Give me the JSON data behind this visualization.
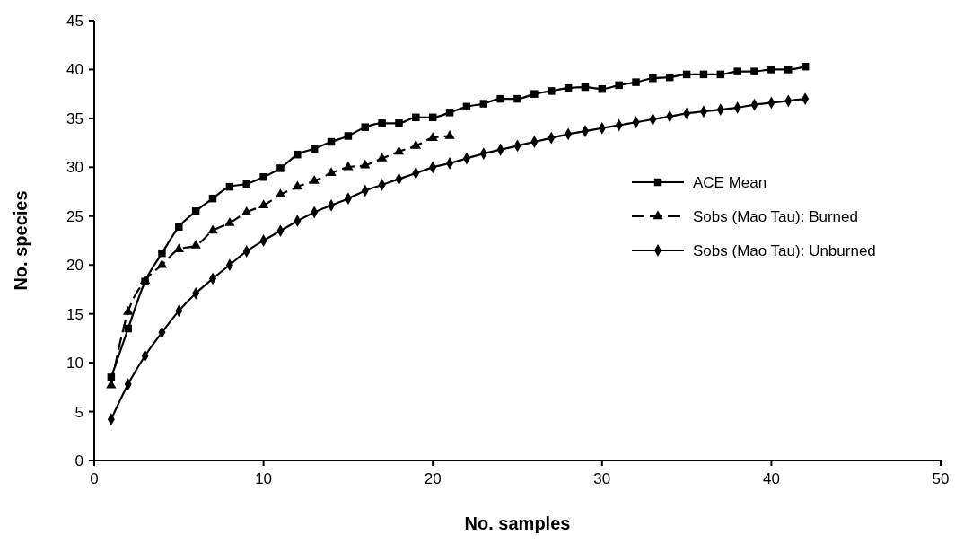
{
  "chart_data": {
    "type": "line",
    "xlabel": "No. samples",
    "ylabel": "No. species",
    "xlim": [
      0,
      50
    ],
    "xticks": [
      0,
      10,
      20,
      30,
      40,
      50
    ],
    "ylim": [
      0,
      45
    ],
    "yticks": [
      0,
      5,
      10,
      15,
      20,
      25,
      30,
      35,
      40,
      45
    ],
    "grid": false,
    "legend": "right",
    "series": [
      {
        "name": "ACE Mean",
        "color": "#000000",
        "marker": "square",
        "line_style": "solid",
        "x": [
          1,
          2,
          3,
          4,
          5,
          6,
          7,
          8,
          9,
          10,
          11,
          12,
          13,
          14,
          15,
          16,
          17,
          18,
          19,
          20,
          21,
          22,
          23,
          24,
          25,
          26,
          27,
          28,
          29,
          30,
          31,
          32,
          33,
          34,
          35,
          36,
          37,
          38,
          39,
          40,
          41,
          42
        ],
        "values": [
          8.5,
          13.5,
          18.3,
          21.2,
          23.9,
          25.5,
          26.8,
          28.0,
          28.3,
          29.0,
          29.9,
          31.3,
          31.9,
          32.6,
          33.2,
          34.1,
          34.5,
          34.5,
          35.1,
          35.1,
          35.6,
          36.2,
          36.5,
          37.0,
          37.0,
          37.5,
          37.8,
          38.1,
          38.2,
          38.0,
          38.4,
          38.7,
          39.1,
          39.2,
          39.5,
          39.5,
          39.5,
          39.8,
          39.8,
          40.0,
          40.0,
          40.3
        ]
      },
      {
        "name": "Sobs (Mao Tau): Burned",
        "color": "#000000",
        "marker": "triangle",
        "line_style": "dashed",
        "x": [
          1,
          2,
          3,
          4,
          5,
          6,
          7,
          8,
          9,
          10,
          11,
          12,
          13,
          14,
          15,
          16,
          17,
          18,
          19,
          20,
          21
        ],
        "values": [
          7.7,
          15.2,
          18.4,
          20.0,
          21.6,
          22.0,
          23.5,
          24.3,
          25.4,
          26.1,
          27.2,
          28.0,
          28.6,
          29.4,
          30.0,
          30.2,
          30.9,
          31.6,
          32.2,
          33.0,
          33.2
        ]
      },
      {
        "name": "Sobs (Mao Tau): Unburned",
        "color": "#000000",
        "marker": "diamond",
        "line_style": "solid",
        "x": [
          1,
          2,
          3,
          4,
          5,
          6,
          7,
          8,
          9,
          10,
          11,
          12,
          13,
          14,
          15,
          16,
          17,
          18,
          19,
          20,
          21,
          22,
          23,
          24,
          25,
          26,
          27,
          28,
          29,
          30,
          31,
          32,
          33,
          34,
          35,
          36,
          37,
          38,
          39,
          40,
          41,
          42
        ],
        "values": [
          4.2,
          7.8,
          10.7,
          13.1,
          15.3,
          17.1,
          18.6,
          20.0,
          21.4,
          22.5,
          23.5,
          24.5,
          25.4,
          26.1,
          26.8,
          27.6,
          28.2,
          28.8,
          29.4,
          30.0,
          30.4,
          30.9,
          31.4,
          31.8,
          32.2,
          32.6,
          33.0,
          33.4,
          33.7,
          34.0,
          34.3,
          34.6,
          34.9,
          35.2,
          35.5,
          35.7,
          35.9,
          36.1,
          36.4,
          36.6,
          36.8,
          37.0
        ]
      }
    ]
  }
}
